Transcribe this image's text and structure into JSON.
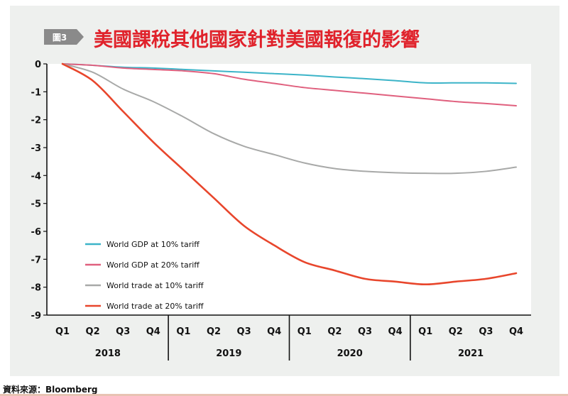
{
  "header": {
    "badge_label": "圖3",
    "title": "美國課稅其他國家針對美國報復的影響"
  },
  "source": "資料來源：Bloomberg",
  "chart_data": {
    "type": "line",
    "title": "美國課稅其他國家針對美國報復的影響",
    "ylim": [
      -9,
      0
    ],
    "yticks": [
      0,
      -1,
      -2,
      -3,
      -4,
      -5,
      -6,
      -7,
      -8,
      -9
    ],
    "ytick_labels": [
      "0",
      "-1",
      "-2",
      "-3",
      "-4",
      "-5",
      "-6",
      "-7",
      "-8",
      "-9"
    ],
    "x": [
      "Q1",
      "Q2",
      "Q3",
      "Q4",
      "Q1",
      "Q2",
      "Q3",
      "Q4",
      "Q1",
      "Q2",
      "Q3",
      "Q4",
      "Q1",
      "Q2",
      "Q3",
      "Q4"
    ],
    "years": [
      "2018",
      "2019",
      "2020",
      "2021"
    ],
    "grid": false,
    "legend_position": "bottom-left",
    "series": [
      {
        "name": "World GDP at 10% tariff",
        "color": "#3cb4c8",
        "values": [
          0,
          -0.05,
          -0.12,
          -0.15,
          -0.2,
          -0.25,
          -0.3,
          -0.35,
          -0.4,
          -0.47,
          -0.53,
          -0.6,
          -0.68,
          -0.68,
          -0.68,
          -0.7
        ]
      },
      {
        "name": "World GDP at 20% tariff",
        "color": "#e0607e",
        "values": [
          0,
          -0.05,
          -0.15,
          -0.2,
          -0.25,
          -0.35,
          -0.55,
          -0.7,
          -0.85,
          -0.95,
          -1.05,
          -1.15,
          -1.25,
          -1.35,
          -1.42,
          -1.5
        ]
      },
      {
        "name": "World trade at 10% tariff",
        "color": "#a8a9a8",
        "values": [
          0,
          -0.3,
          -0.9,
          -1.35,
          -1.9,
          -2.5,
          -2.95,
          -3.25,
          -3.55,
          -3.75,
          -3.85,
          -3.9,
          -3.92,
          -3.92,
          -3.85,
          -3.7
        ]
      },
      {
        "name": "World trade at 20% tariff",
        "color": "#e8462c",
        "values": [
          0,
          -0.6,
          -1.7,
          -2.8,
          -3.8,
          -4.8,
          -5.8,
          -6.5,
          -7.1,
          -7.4,
          -7.7,
          -7.8,
          -7.9,
          -7.8,
          -7.7,
          -7.5
        ]
      }
    ]
  }
}
